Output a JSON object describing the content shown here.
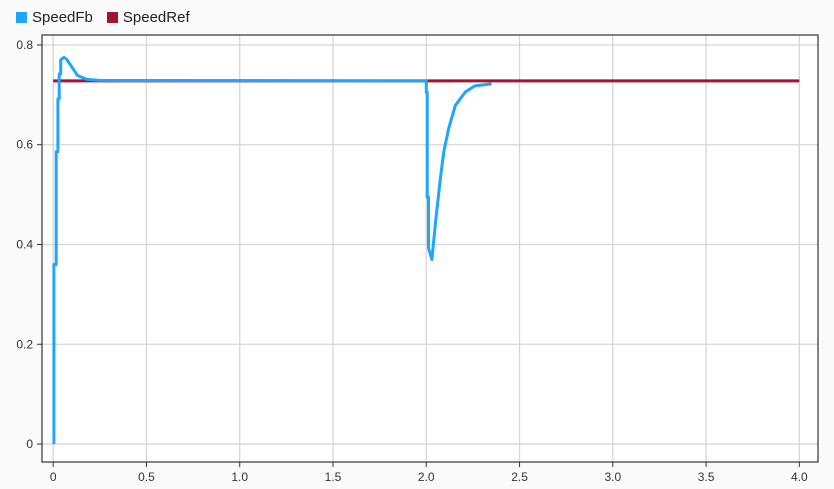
{
  "chart_data": {
    "type": "line",
    "title": "",
    "xlabel": "",
    "ylabel": "",
    "xlim": [
      -0.06,
      4.1
    ],
    "ylim": [
      -0.036,
      0.82
    ],
    "grid": true,
    "legend_position": "top-left",
    "xticks": [
      "0",
      "0.5",
      "1.0",
      "1.5",
      "2.0",
      "2.5",
      "3.0",
      "3.5",
      "4.0"
    ],
    "yticks": [
      "0",
      "0.2",
      "0.4",
      "0.6",
      "0.8"
    ],
    "series": [
      {
        "name": "SpeedFb",
        "color": "#1ea5ff",
        "step": true,
        "x": [
          0.004,
          0.004,
          0.016,
          0.016,
          0.025,
          0.025,
          0.032,
          0.032,
          0.04,
          0.04,
          0.057,
          0.07,
          0.093,
          0.13,
          0.18,
          0.25,
          2.0,
          2.0,
          2.005,
          2.005,
          2.012,
          2.012,
          2.03,
          2.05,
          2.076,
          2.094,
          2.12,
          2.156,
          2.21,
          2.26,
          2.35
        ],
        "y": [
          0,
          0.36,
          0.36,
          0.586,
          0.586,
          0.692,
          0.692,
          0.742,
          0.742,
          0.77,
          0.775,
          0.772,
          0.76,
          0.739,
          0.731,
          0.729,
          0.728,
          0.705,
          0.705,
          0.495,
          0.495,
          0.393,
          0.37,
          0.446,
          0.533,
          0.586,
          0.633,
          0.679,
          0.706,
          0.718,
          0.722
        ]
      },
      {
        "name": "SpeedRef",
        "color": "#a2142f",
        "x": [
          0,
          4.0
        ],
        "y": [
          0.728,
          0.728
        ]
      }
    ]
  }
}
